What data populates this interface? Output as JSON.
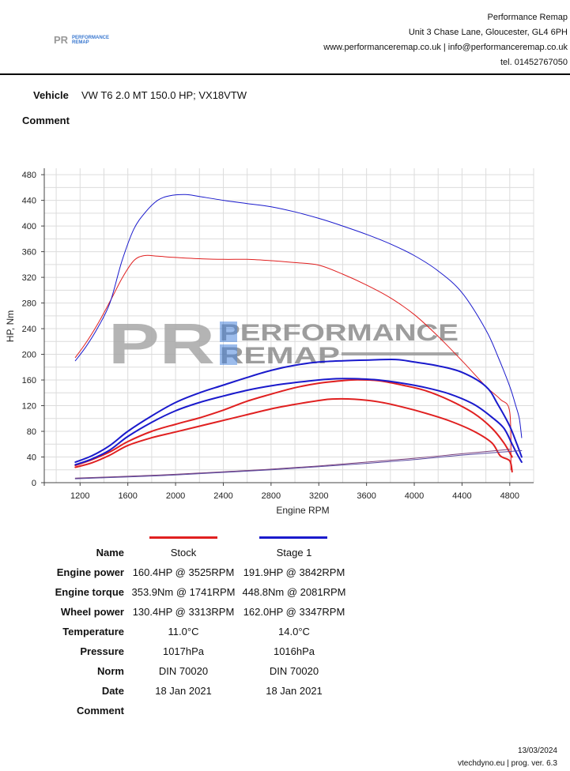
{
  "header": {
    "company_name": "Performance Remap",
    "address": "Unit 3 Chase Lane, Gloucester, GL4 6PH",
    "contact": "www.performanceremap.co.uk | info@performanceremap.co.uk",
    "phone": "tel. 01452767050",
    "logo_text_mark": "PR",
    "logo_text_1": "PERFORMANCE",
    "logo_text_2": "REMAP"
  },
  "vehicle": {
    "label": "Vehicle",
    "value": "VW T6 2.0 MT 150.0 HP; VX18VTW"
  },
  "comment_label": "Comment",
  "colors": {
    "stock": "#e02020",
    "stage1": "#1a1acc",
    "loss": "#8a4a8a",
    "watermark_grey": "#a0a0a0",
    "watermark_blue": "#2a6fd6"
  },
  "chart_data": {
    "type": "line",
    "xlabel": "Engine RPM",
    "ylabel": "HP, Nm",
    "xlim": [
      900,
      5000
    ],
    "ylim": [
      0,
      490
    ],
    "xticks": [
      1200,
      1600,
      2000,
      2400,
      2800,
      3200,
      3600,
      4000,
      4400,
      4800
    ],
    "yticks": [
      0,
      40,
      80,
      120,
      160,
      200,
      240,
      280,
      320,
      360,
      400,
      440,
      480
    ],
    "grid": true,
    "series": [
      {
        "name": "Stock",
        "kind": "torque",
        "color": "#e02020",
        "stroke": 1,
        "x": [
          1160,
          1250,
          1350,
          1450,
          1550,
          1650,
          1741,
          1850,
          2000,
          2200,
          2400,
          2600,
          2800,
          3000,
          3200,
          3400,
          3600,
          3800,
          4000,
          4200,
          4400,
          4600,
          4720,
          4800,
          4810
        ],
        "y": [
          195,
          218,
          248,
          282,
          318,
          346,
          354,
          353,
          351,
          349,
          348,
          348,
          346,
          343,
          339,
          325,
          308,
          288,
          262,
          228,
          190,
          150,
          130,
          110,
          20
        ]
      },
      {
        "name": "Stage 1",
        "kind": "torque",
        "color": "#1a1acc",
        "stroke": 1,
        "x": [
          1160,
          1250,
          1350,
          1450,
          1550,
          1650,
          1750,
          1850,
          1950,
          2081,
          2200,
          2400,
          2600,
          2800,
          3000,
          3200,
          3400,
          3600,
          3800,
          4000,
          4200,
          4400,
          4600,
          4700,
          4800,
          4850,
          4880,
          4900
        ],
        "y": [
          190,
          212,
          242,
          280,
          345,
          395,
          422,
          440,
          447,
          449,
          446,
          440,
          435,
          430,
          422,
          412,
          400,
          387,
          372,
          354,
          330,
          296,
          238,
          197,
          150,
          120,
          100,
          70
        ]
      },
      {
        "name": "Stock",
        "kind": "engine_power",
        "color": "#e02020",
        "stroke": 2,
        "x": [
          1160,
          1300,
          1450,
          1600,
          1800,
          2000,
          2200,
          2400,
          2600,
          2800,
          3000,
          3200,
          3400,
          3525,
          3700,
          3900,
          4100,
          4300,
          4500,
          4650,
          4750,
          4820
        ],
        "y": [
          27,
          36,
          48,
          64,
          80,
          91,
          101,
          113,
          127,
          138,
          148,
          155,
          159,
          160.4,
          159,
          152,
          143,
          128,
          108,
          85,
          62,
          40
        ]
      },
      {
        "name": "Stage 1",
        "kind": "engine_power",
        "color": "#1a1acc",
        "stroke": 2,
        "x": [
          1160,
          1300,
          1450,
          1600,
          1800,
          2000,
          2200,
          2400,
          2600,
          2800,
          3000,
          3200,
          3400,
          3600,
          3842,
          4000,
          4200,
          4400,
          4600,
          4700,
          4800,
          4860,
          4900
        ],
        "y": [
          32,
          42,
          58,
          80,
          104,
          125,
          140,
          152,
          164,
          175,
          183,
          188,
          190,
          191,
          191.9,
          188,
          182,
          172,
          150,
          122,
          88,
          60,
          40
        ]
      },
      {
        "name": "Stock",
        "kind": "wheel_power",
        "color": "#e02020",
        "stroke": 2,
        "x": [
          1160,
          1300,
          1450,
          1600,
          1800,
          2000,
          2200,
          2400,
          2600,
          2800,
          3000,
          3200,
          3313,
          3500,
          3700,
          3900,
          4100,
          4300,
          4500,
          4650,
          4720,
          4800,
          4820
        ],
        "y": [
          24,
          31,
          43,
          58,
          70,
          79,
          88,
          97,
          106,
          115,
          122,
          128,
          130.4,
          130,
          126,
          118,
          108,
          96,
          80,
          62,
          42,
          34,
          17
        ]
      },
      {
        "name": "Stage 1",
        "kind": "wheel_power",
        "color": "#1a1acc",
        "stroke": 2,
        "x": [
          1160,
          1300,
          1450,
          1600,
          1800,
          2000,
          2200,
          2400,
          2600,
          2800,
          3000,
          3200,
          3347,
          3500,
          3700,
          3900,
          4100,
          4300,
          4500,
          4650,
          4750,
          4820,
          4860,
          4900
        ],
        "y": [
          28,
          37,
          51,
          72,
          94,
          112,
          125,
          135,
          144,
          151,
          156,
          160,
          162,
          162,
          160,
          155,
          148,
          138,
          122,
          102,
          85,
          60,
          45,
          32
        ]
      },
      {
        "name": "Stock",
        "kind": "loss",
        "color": "#7a3f7a",
        "stroke": 1,
        "x": [
          1160,
          1600,
          2000,
          2400,
          2800,
          3200,
          3600,
          4000,
          4400,
          4800
        ],
        "y": [
          7,
          10,
          13,
          17,
          21,
          26,
          32,
          38,
          45,
          52
        ]
      },
      {
        "name": "Stage 1",
        "kind": "loss",
        "color": "#5a4aa0",
        "stroke": 1,
        "x": [
          1160,
          1600,
          2000,
          2400,
          2800,
          3200,
          3600,
          4000,
          4400,
          4900
        ],
        "y": [
          6,
          9,
          12,
          16,
          20,
          25,
          30,
          36,
          43,
          50
        ]
      }
    ]
  },
  "legend": {
    "name_label": "Name",
    "stock_name": "Stock",
    "stage_name": "Stage 1"
  },
  "results": {
    "rows": [
      {
        "label": "Engine power",
        "stock": "160.4HP @ 3525RPM",
        "stage": "191.9HP @ 3842RPM"
      },
      {
        "label": "Engine torque",
        "stock": "353.9Nm @ 1741RPM",
        "stage": "448.8Nm @ 2081RPM"
      },
      {
        "label": "Wheel power",
        "stock": "130.4HP @ 3313RPM",
        "stage": "162.0HP @ 3347RPM"
      },
      {
        "label": "Temperature",
        "stock": "11.0°C",
        "stage": "14.0°C"
      },
      {
        "label": "Pressure",
        "stock": "1017hPa",
        "stage": "1016hPa"
      },
      {
        "label": "Norm",
        "stock": "DIN 70020",
        "stage": "DIN 70020"
      },
      {
        "label": "Date",
        "stock": "18 Jan 2021",
        "stage": "18 Jan 2021"
      },
      {
        "label": "Comment",
        "stock": "",
        "stage": ""
      }
    ]
  },
  "footer": {
    "date": "13/03/2024",
    "program": "vtechdyno.eu | prog. ver. 6.3"
  }
}
